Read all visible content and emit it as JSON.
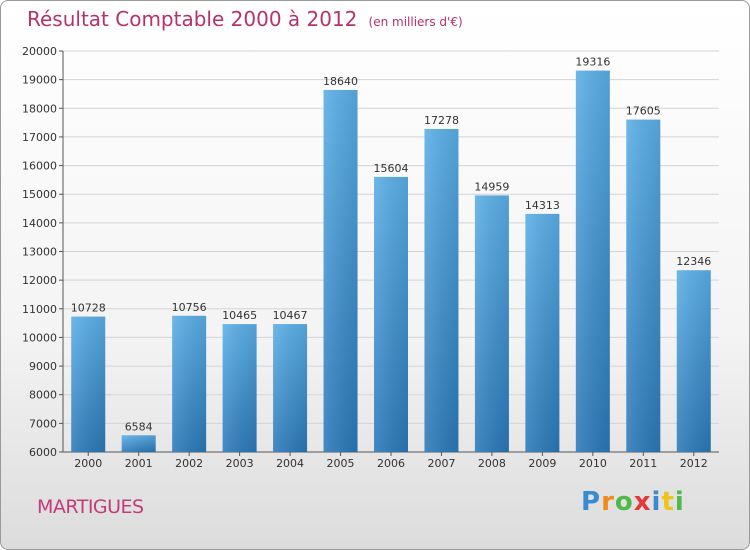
{
  "header": {
    "title": "Résultat Comptable 2000 à 2012",
    "subtitle": "(en milliers d'€)"
  },
  "footer": {
    "city": "MARTIGUES",
    "logo_text": "Proxiti"
  },
  "colors": {
    "title": "#b5326b",
    "bar_light": "#5aaee6",
    "bar_dark": "#2a78b8",
    "grid": "#d4d4d4"
  },
  "chart_data": {
    "type": "bar",
    "title": "Résultat Comptable 2000 à 2012",
    "subtitle": "(en milliers d'€)",
    "xlabel": "",
    "ylabel": "",
    "ylim": [
      6000,
      20000
    ],
    "yticks": [
      6000,
      7000,
      8000,
      9000,
      10000,
      11000,
      12000,
      13000,
      14000,
      15000,
      16000,
      17000,
      18000,
      19000,
      20000
    ],
    "grid": true,
    "legend": "none",
    "categories": [
      "2000",
      "2001",
      "2002",
      "2003",
      "2004",
      "2005",
      "2006",
      "2007",
      "2008",
      "2009",
      "2010",
      "2011",
      "2012"
    ],
    "values": [
      10728,
      6584,
      10756,
      10465,
      10467,
      18640,
      15604,
      17278,
      14959,
      14313,
      19316,
      17605,
      12346
    ]
  }
}
